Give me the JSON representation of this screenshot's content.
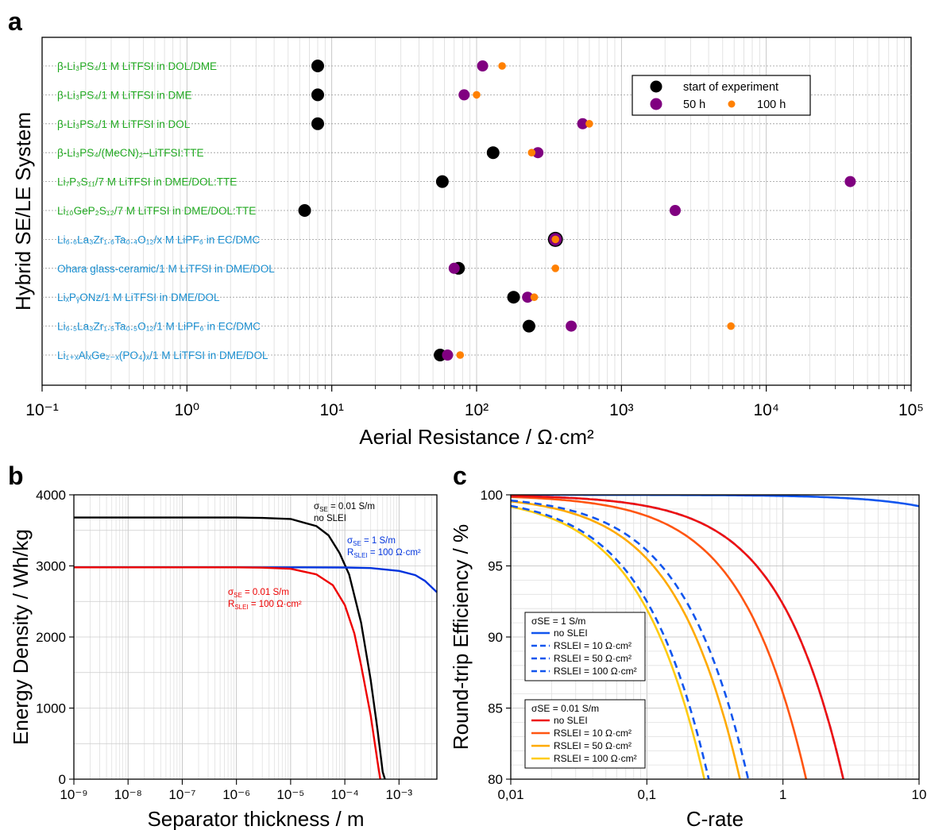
{
  "panels": {
    "a": "a",
    "b": "b",
    "c": "c"
  },
  "chart_data": [
    {
      "type": "scatter",
      "panel": "a",
      "xlabel": "Aerial Resistance / Ω·cm²",
      "ylabel": "Hybrid SE/LE System",
      "xscale": "log",
      "xlim": [
        0.1,
        100000
      ],
      "xticks": [
        "10⁻¹",
        "10⁰",
        "10¹",
        "10²",
        "10³",
        "10⁴",
        "10⁵"
      ],
      "grid": true,
      "legend_position": "top-right",
      "legend": [
        "start of experiment",
        "50 h",
        "100 h"
      ],
      "colors": {
        "start": "#000000",
        "h50": "#800080",
        "h100": "#ff8000",
        "sulfide": "#22aa22",
        "oxide": "#1a8fd0"
      },
      "systems": [
        {
          "label": "β-Li₃PS₄/1 M LiTFSI in DOL/DME",
          "group": "sulfide",
          "start": 8,
          "h50": 110,
          "h100": 150
        },
        {
          "label": "β-Li₃PS₄/1 M LiTFSI in DME",
          "group": "sulfide",
          "start": 8,
          "h50": 82,
          "h100": 100
        },
        {
          "label": "β-Li₃PS₄/1 M LiTFSI in DOL",
          "group": "sulfide",
          "start": 8,
          "h50": 540,
          "h100": 600
        },
        {
          "label": "β-Li₃PS₄/(MeCN)₂–LiTFSI:TTE",
          "group": "sulfide",
          "start": 130,
          "h50": 265,
          "h100": 240
        },
        {
          "label": "Li₇P₃S₁₁/7 M LiTFSI in DME/DOL:TTE",
          "group": "sulfide",
          "start": 58,
          "h50": 38000,
          "h100": null
        },
        {
          "label": "Li₁₀GeP₂S₁₂/7 M LiTFSI in DME/DOL:TTE",
          "group": "sulfide",
          "start": 6.5,
          "h50": 2350,
          "h100": null
        },
        {
          "label": "Li₆.₆La₃Zr₁.₆Ta₀.₄O₁₂/x M LiPF₆ in EC/DMC",
          "group": "oxide",
          "start": 350,
          "h50": 350,
          "h100": 350
        },
        {
          "label": "Ohara glass-ceramic/1 M LiTFSI in DME/DOL",
          "group": "oxide",
          "start": 75,
          "h50": 70,
          "h100": 350
        },
        {
          "label": "LiₓPᵧONz/1 M LiTFSI in DME/DOL",
          "group": "oxide",
          "start": 180,
          "h50": 225,
          "h100": 250
        },
        {
          "label": "Li₆.₅La₃Zr₁.₅Ta₀.₅O₁₂/1 M LiPF₆ in EC/DMC",
          "group": "oxide",
          "start": 230,
          "h50": 450,
          "h100": 5700
        },
        {
          "label": "Li₁₊ₓAlₓGe₂₋ₓ(PO₄)ₓ/1 M LiTFSI in DME/DOL",
          "group": "oxide",
          "start": 56,
          "h50": 63,
          "h100": 77
        }
      ]
    },
    {
      "type": "line",
      "panel": "b",
      "xlabel": "Separator thickness / m",
      "ylabel": "Energy Density / Wh/kg",
      "xscale": "log",
      "xlim": [
        1e-09,
        0.005
      ],
      "ylim": [
        0,
        4000
      ],
      "xticks": [
        "10⁻⁹",
        "10⁻⁸",
        "10⁻⁷",
        "10⁻⁶",
        "10⁻⁵",
        "10⁻⁴",
        "10⁻³"
      ],
      "yticks": [
        "0",
        "1000",
        "2000",
        "3000",
        "4000"
      ],
      "grid": true,
      "series": [
        {
          "color": "#000000",
          "annotation": [
            "σSE = 0.01 S/m",
            "no SLEI"
          ],
          "x": [
            1e-09,
            1e-06,
            3e-06,
            1e-05,
            3e-05,
            5e-05,
            8e-05,
            0.00012,
            0.0002,
            0.0003,
            0.0004,
            0.0005,
            0.00055
          ],
          "y": [
            3680,
            3680,
            3675,
            3660,
            3560,
            3430,
            3180,
            2880,
            2200,
            1400,
            700,
            100,
            0
          ]
        },
        {
          "color": "#0033dd",
          "annotation": [
            "σSE = 1 S/m",
            "RSLEI = 100 Ω·cm²"
          ],
          "x": [
            1e-09,
            1e-06,
            1e-05,
            0.0001,
            0.0003,
            0.001,
            0.002,
            0.003,
            0.005
          ],
          "y": [
            2980,
            2980,
            2980,
            2978,
            2970,
            2930,
            2870,
            2790,
            2630
          ]
        },
        {
          "color": "#ee0000",
          "annotation": [
            "σSE = 0.01 S/m",
            "RSLEI = 100 Ω·cm²"
          ],
          "x": [
            1e-09,
            1e-06,
            3e-06,
            1e-05,
            3e-05,
            6e-05,
            0.0001,
            0.00015,
            0.0002,
            0.0003,
            0.0004,
            0.00045
          ],
          "y": [
            2980,
            2980,
            2975,
            2960,
            2880,
            2730,
            2450,
            2050,
            1600,
            900,
            250,
            0
          ]
        }
      ]
    },
    {
      "type": "line",
      "panel": "c",
      "xlabel": "C-rate",
      "ylabel": "Round-trip Efficiency / %",
      "xscale": "log",
      "xlim": [
        0.01,
        10
      ],
      "ylim": [
        80,
        100
      ],
      "xticks": [
        "0,01",
        "0,1",
        "1",
        "10"
      ],
      "yticks": [
        "80",
        "85",
        "90",
        "95",
        "100"
      ],
      "grid": true,
      "legend_groups": [
        {
          "title": "σSE = 1 S/m",
          "entries": [
            "no SLEI",
            "RSLEI = 10 Ω·cm²",
            "RSLEI = 50 Ω·cm²",
            "RSLEI = 100 Ω·cm²"
          ]
        },
        {
          "title": "σSE = 0.01 S/m",
          "entries": [
            "no SLEI",
            "RSLEI = 10 Ω·cm²",
            "RSLEI = 50 Ω·cm²",
            "RSLEI = 100 Ω·cm²"
          ]
        }
      ],
      "series": [
        {
          "group": "σSE = 1 S/m",
          "name": "no SLEI",
          "color": "#1155ee",
          "dash": "solid",
          "k": 0.0004
        },
        {
          "group": "σSE = 1 S/m",
          "name": "RSLEI = 10 Ω·cm²",
          "color": "#1155ee",
          "dash": "dashed",
          "k": 0.04
        },
        {
          "group": "σSE = 1 S/m",
          "name": "RSLEI = 50 Ω·cm²",
          "color": "#1155ee",
          "dash": "dashed",
          "k": 0.2
        },
        {
          "group": "σSE = 1 S/m",
          "name": "RSLEI = 100 Ω·cm²",
          "color": "#1155ee",
          "dash": "dashed",
          "k": 0.39
        },
        {
          "group": "σSE = 0.01 S/m",
          "name": "no SLEI",
          "color": "#ee1111",
          "dash": "solid",
          "k": 0.04
        },
        {
          "group": "σSE = 0.01 S/m",
          "name": "RSLEI = 10 Ω·cm²",
          "color": "#ff5511",
          "dash": "solid",
          "k": 0.075
        },
        {
          "group": "σSE = 0.01 S/m",
          "name": "RSLEI = 50 Ω·cm²",
          "color": "#ffaa00",
          "dash": "solid",
          "k": 0.23
        },
        {
          "group": "σSE = 0.01 S/m",
          "name": "RSLEI = 100 Ω·cm²",
          "color": "#ffcc11",
          "dash": "solid",
          "k": 0.42
        }
      ]
    }
  ]
}
